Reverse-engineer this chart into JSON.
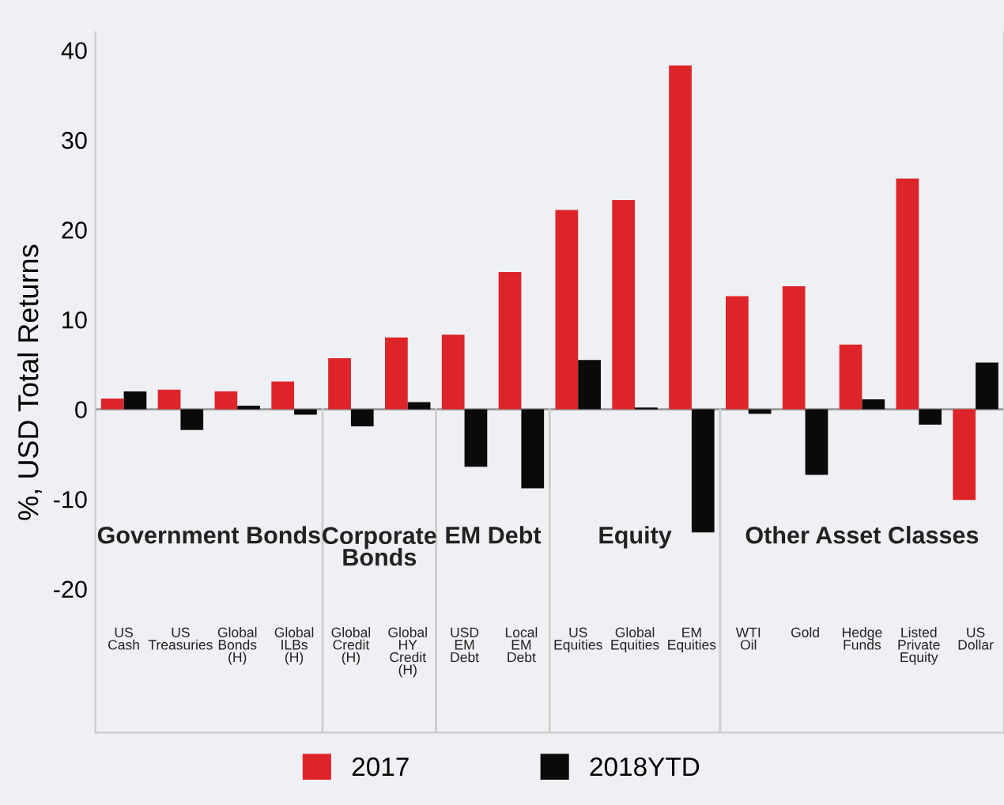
{
  "chart_data": {
    "type": "bar",
    "ylabel": "%, USD Total Returns",
    "categories": [
      "US\nCash",
      "US\nTreasuries",
      "Global\nBonds\n(H)",
      "Global\nILBs\n(H)",
      "Global\nCredit\n(H)",
      "Global\nHY\nCredit\n(H)",
      "USD\nEM\nDebt",
      "Local\nEM\nDebt",
      "US\nEquities",
      "Global\nEquities",
      "EM\nEquities",
      "WTI\nOil",
      "Gold",
      "Hedge\nFunds",
      "Listed\nPrivate\nEquity",
      "US\nDollar"
    ],
    "series": [
      {
        "name": "2017",
        "color": "#dd2428",
        "values": [
          1.2,
          2.2,
          2.0,
          3.1,
          5.7,
          8.0,
          8.3,
          15.3,
          22.2,
          23.3,
          38.3,
          12.6,
          13.7,
          7.2,
          25.7,
          -10.1
        ]
      },
      {
        "name": "2018YTD",
        "color": "#0a0a0a",
        "values": [
          2.0,
          -2.3,
          0.4,
          -0.6,
          -1.9,
          0.8,
          -6.4,
          -8.8,
          5.5,
          0.2,
          -13.7,
          -0.5,
          -7.3,
          1.1,
          -1.7,
          5.2
        ]
      }
    ],
    "ylim": [
      -36,
      42
    ],
    "yticks": [
      -20,
      -10,
      0,
      10,
      20,
      30,
      40
    ],
    "ref_lines": [
      {
        "axis": "y",
        "value": 0,
        "color": "#999999"
      }
    ],
    "annotations": [
      "Government Bonds",
      "Corporate\nBonds",
      "EM Debt",
      "Equity",
      "Other Asset Classes"
    ],
    "legend": "bottom",
    "grid": false
  }
}
